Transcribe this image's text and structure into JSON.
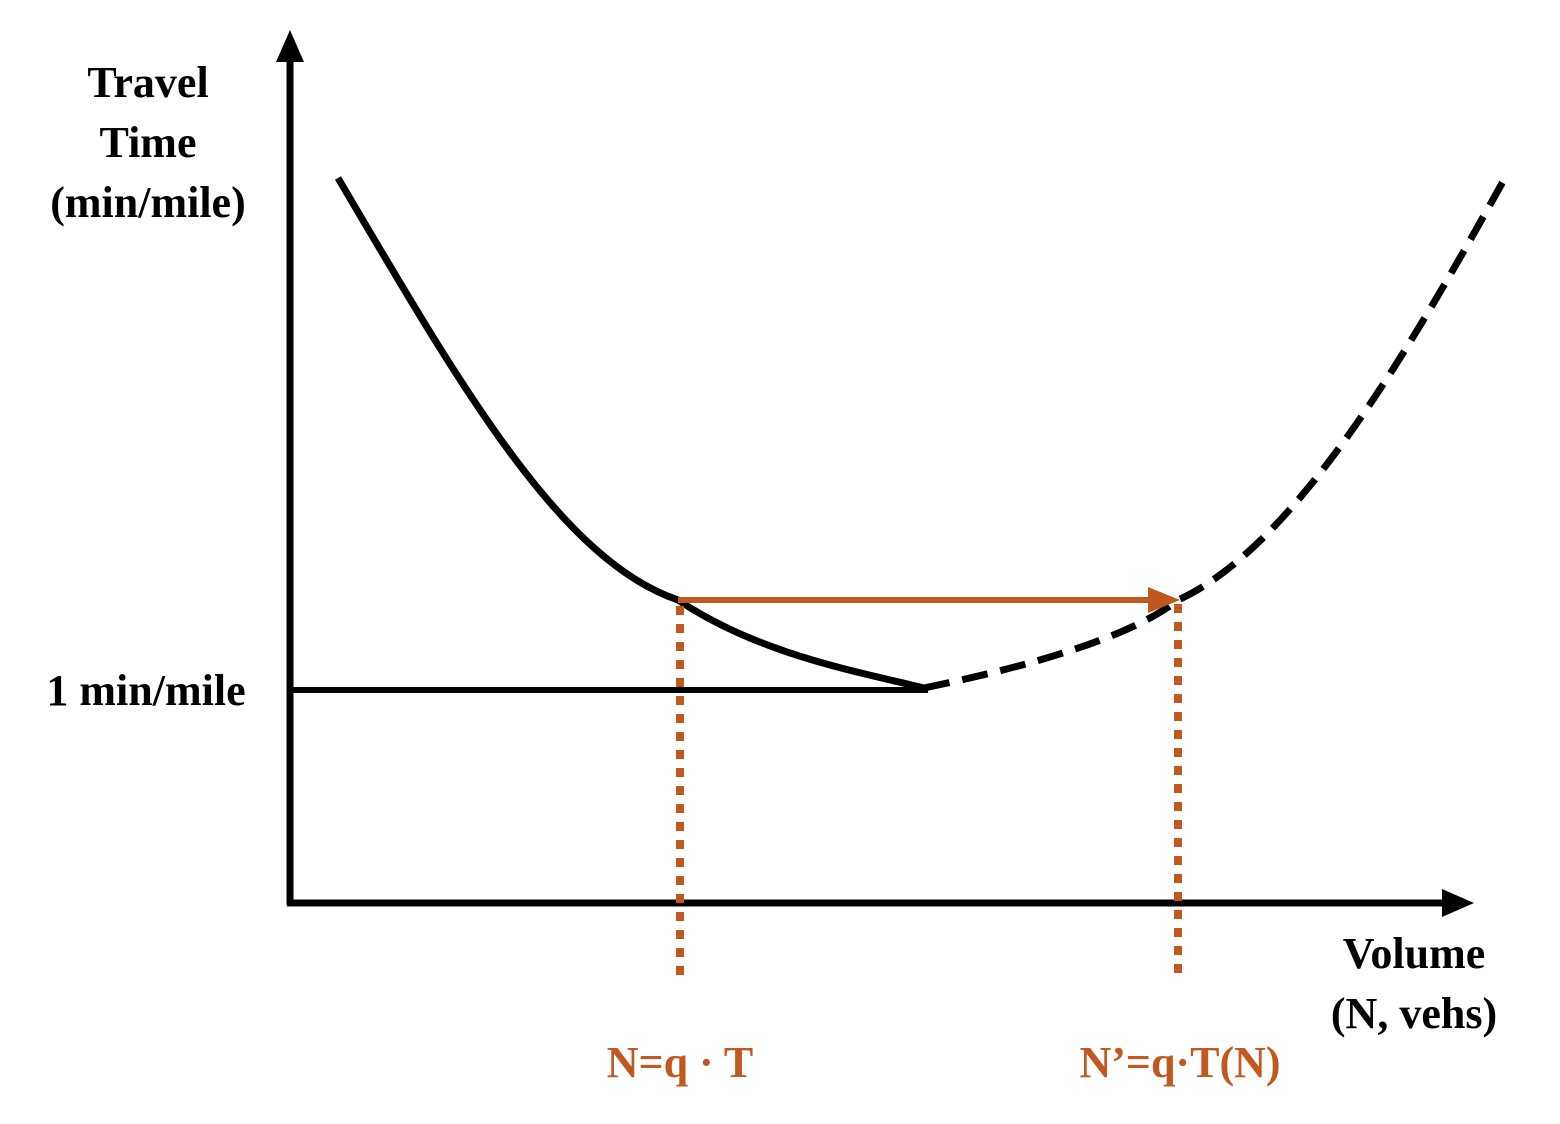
{
  "colors": {
    "ink": "#000000",
    "accent": "#C0581F"
  },
  "y_axis_label": {
    "line1": "Travel",
    "line2": "Time",
    "line3": "(min/mile)"
  },
  "x_axis_label": {
    "line1": "Volume",
    "line2": "(N, vehs)"
  },
  "free_flow_label": "1 min/mile",
  "marker_left_label": "N=q · T",
  "marker_right_label": "N’=q·T(N)"
}
